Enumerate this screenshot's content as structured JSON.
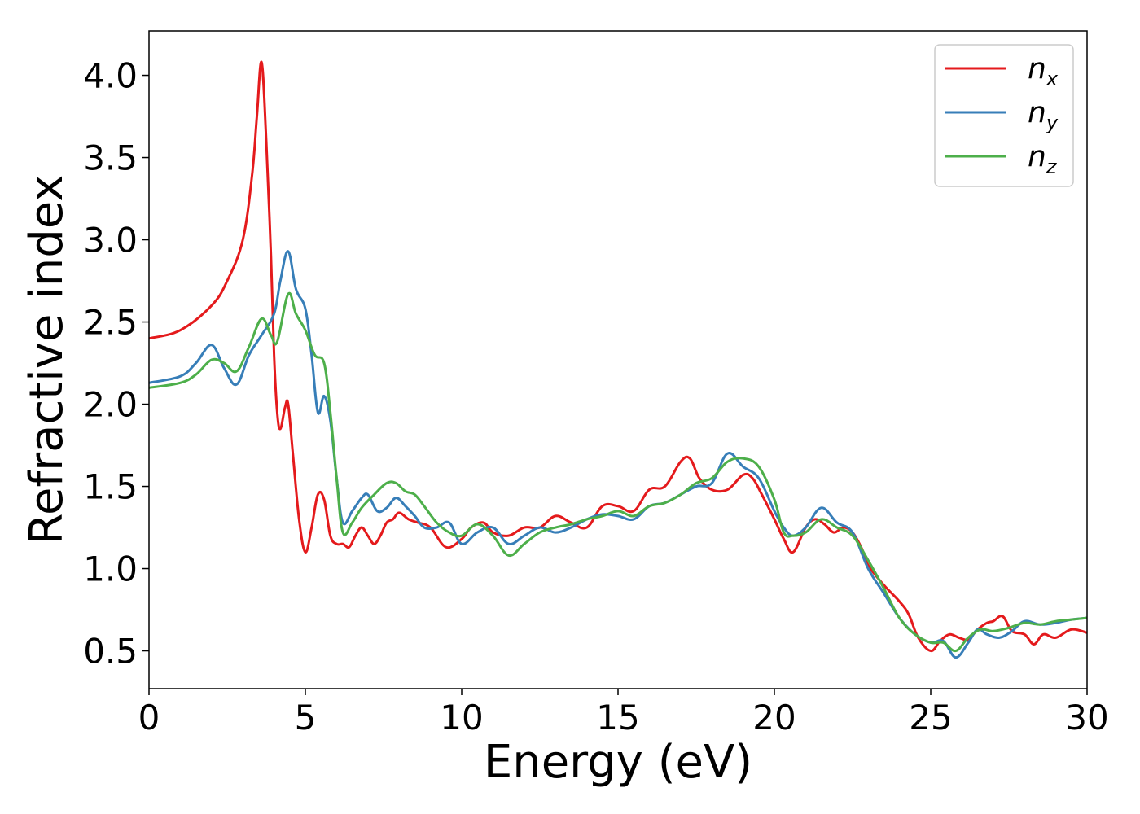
{
  "chart_data": {
    "type": "line",
    "title": "",
    "xlabel": "Energy (eV)",
    "ylabel": "Refractive index",
    "xlim": [
      0,
      30
    ],
    "ylim": [
      0.27,
      4.27
    ],
    "xticks": [
      0,
      5,
      10,
      15,
      20,
      25,
      30
    ],
    "yticks": [
      0.5,
      1.0,
      1.5,
      2.0,
      2.5,
      3.0,
      3.5,
      4.0
    ],
    "xtick_labels": [
      "0",
      "5",
      "10",
      "15",
      "20",
      "25",
      "30"
    ],
    "ytick_labels": [
      "0.5",
      "1.0",
      "1.5",
      "2.0",
      "2.5",
      "3.0",
      "3.5",
      "4.0"
    ],
    "grid": false,
    "legend_position": "top-right",
    "series": [
      {
        "name": "n_x",
        "legend_base": "n",
        "legend_sub": "x",
        "color": "#e41a1c",
        "x": [
          0,
          1,
          2,
          2.5,
          3,
          3.3,
          3.45,
          3.6,
          3.75,
          3.9,
          4.0,
          4.1,
          4.2,
          4.35,
          4.45,
          4.6,
          4.8,
          5.0,
          5.2,
          5.4,
          5.6,
          5.8,
          6.0,
          6.2,
          6.4,
          6.6,
          6.8,
          7.0,
          7.2,
          7.4,
          7.6,
          7.8,
          8.0,
          8.3,
          8.6,
          9.0,
          9.5,
          10.0,
          10.3,
          10.7,
          11.0,
          11.5,
          12.0,
          12.5,
          13.0,
          13.5,
          14.0,
          14.5,
          15.0,
          15.5,
          16.0,
          16.5,
          17.0,
          17.3,
          17.6,
          18.0,
          18.5,
          19.0,
          19.3,
          19.6,
          20.0,
          20.3,
          20.6,
          21.0,
          21.3,
          21.6,
          21.9,
          22.2,
          22.5,
          22.8,
          23.0,
          23.5,
          24.0,
          24.3,
          24.6,
          25.0,
          25.3,
          25.6,
          25.9,
          26.2,
          26.5,
          26.8,
          27.0,
          27.3,
          27.6,
          28.0,
          28.3,
          28.6,
          29.0,
          29.5,
          30.0
        ],
        "y": [
          2.4,
          2.45,
          2.6,
          2.75,
          3.0,
          3.4,
          3.75,
          4.08,
          3.6,
          2.9,
          2.3,
          1.95,
          1.85,
          1.98,
          2.0,
          1.7,
          1.3,
          1.1,
          1.25,
          1.45,
          1.42,
          1.2,
          1.15,
          1.15,
          1.13,
          1.2,
          1.25,
          1.2,
          1.15,
          1.2,
          1.28,
          1.3,
          1.34,
          1.3,
          1.28,
          1.25,
          1.13,
          1.18,
          1.25,
          1.28,
          1.22,
          1.2,
          1.25,
          1.25,
          1.32,
          1.28,
          1.25,
          1.38,
          1.38,
          1.35,
          1.48,
          1.5,
          1.65,
          1.67,
          1.55,
          1.48,
          1.48,
          1.57,
          1.55,
          1.45,
          1.3,
          1.18,
          1.1,
          1.25,
          1.3,
          1.27,
          1.22,
          1.25,
          1.22,
          1.12,
          1.02,
          0.9,
          0.8,
          0.72,
          0.58,
          0.5,
          0.56,
          0.6,
          0.58,
          0.57,
          0.63,
          0.67,
          0.68,
          0.71,
          0.62,
          0.6,
          0.54,
          0.6,
          0.58,
          0.63,
          0.61
        ]
      },
      {
        "name": "n_y",
        "legend_base": "n",
        "legend_sub": "y",
        "color": "#377eb8",
        "x": [
          0,
          1,
          1.5,
          2.0,
          2.4,
          2.8,
          3.2,
          3.6,
          4.0,
          4.2,
          4.45,
          4.7,
          5.0,
          5.2,
          5.4,
          5.6,
          5.8,
          6.0,
          6.2,
          6.5,
          6.8,
          7.0,
          7.3,
          7.6,
          7.9,
          8.2,
          8.5,
          8.8,
          9.2,
          9.6,
          10.0,
          10.5,
          11.0,
          11.5,
          12.0,
          12.5,
          13.0,
          13.5,
          14.0,
          14.5,
          15.0,
          15.5,
          16.0,
          16.5,
          17.0,
          17.5,
          18.0,
          18.5,
          19.0,
          19.5,
          20.0,
          20.3,
          20.6,
          21.0,
          21.5,
          22.0,
          22.5,
          23.0,
          23.5,
          24.0,
          24.5,
          25.0,
          25.4,
          25.8,
          26.2,
          26.5,
          26.8,
          27.2,
          27.6,
          28.0,
          28.5,
          29.0,
          29.5,
          30.0
        ],
        "y": [
          2.13,
          2.17,
          2.25,
          2.36,
          2.22,
          2.12,
          2.3,
          2.42,
          2.55,
          2.75,
          2.93,
          2.7,
          2.58,
          2.3,
          1.95,
          2.05,
          1.9,
          1.55,
          1.28,
          1.35,
          1.43,
          1.45,
          1.35,
          1.37,
          1.43,
          1.38,
          1.32,
          1.25,
          1.25,
          1.28,
          1.15,
          1.22,
          1.25,
          1.15,
          1.2,
          1.25,
          1.22,
          1.25,
          1.3,
          1.33,
          1.32,
          1.3,
          1.38,
          1.4,
          1.45,
          1.5,
          1.52,
          1.7,
          1.62,
          1.55,
          1.35,
          1.25,
          1.2,
          1.25,
          1.37,
          1.28,
          1.22,
          1.0,
          0.85,
          0.7,
          0.6,
          0.55,
          0.56,
          0.46,
          0.55,
          0.63,
          0.6,
          0.58,
          0.62,
          0.68,
          0.66,
          0.67,
          0.69,
          0.7
        ]
      },
      {
        "name": "n_z",
        "legend_base": "n",
        "legend_sub": "z",
        "color": "#4daf4a",
        "x": [
          0,
          1,
          1.5,
          2.0,
          2.4,
          2.8,
          3.2,
          3.6,
          3.9,
          4.1,
          4.45,
          4.7,
          5.0,
          5.3,
          5.6,
          5.8,
          6.0,
          6.2,
          6.5,
          6.8,
          7.2,
          7.6,
          7.9,
          8.2,
          8.5,
          8.8,
          9.2,
          9.6,
          10.0,
          10.5,
          11.0,
          11.5,
          12.0,
          12.5,
          13.0,
          13.5,
          14.0,
          14.5,
          15.0,
          15.5,
          16.0,
          16.5,
          17.0,
          17.5,
          18.0,
          18.5,
          19.0,
          19.5,
          20.0,
          20.3,
          20.6,
          21.0,
          21.5,
          22.0,
          22.5,
          23.0,
          23.5,
          24.0,
          24.5,
          25.0,
          25.4,
          25.8,
          26.2,
          26.6,
          27.0,
          27.5,
          28.0,
          28.5,
          29.0,
          29.5,
          30.0
        ],
        "y": [
          2.1,
          2.13,
          2.18,
          2.27,
          2.25,
          2.2,
          2.35,
          2.52,
          2.42,
          2.38,
          2.67,
          2.55,
          2.45,
          2.3,
          2.25,
          1.95,
          1.55,
          1.22,
          1.28,
          1.37,
          1.45,
          1.52,
          1.52,
          1.47,
          1.45,
          1.38,
          1.28,
          1.22,
          1.2,
          1.27,
          1.2,
          1.08,
          1.15,
          1.22,
          1.25,
          1.27,
          1.3,
          1.32,
          1.35,
          1.32,
          1.38,
          1.4,
          1.45,
          1.52,
          1.55,
          1.65,
          1.67,
          1.62,
          1.42,
          1.22,
          1.2,
          1.22,
          1.3,
          1.25,
          1.2,
          1.05,
          0.88,
          0.7,
          0.6,
          0.55,
          0.55,
          0.5,
          0.58,
          0.63,
          0.62,
          0.64,
          0.67,
          0.66,
          0.68,
          0.69,
          0.7
        ]
      }
    ]
  }
}
